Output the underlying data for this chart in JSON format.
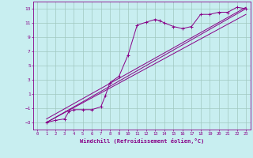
{
  "xlabel": "Windchill (Refroidissement éolien,°C)",
  "ylabel": "",
  "bg_color": "#c8eef0",
  "grid_color": "#a0c8c0",
  "line_color": "#880088",
  "xlim": [
    -0.5,
    23.5
  ],
  "ylim": [
    -4,
    14
  ],
  "xticks": [
    0,
    1,
    2,
    3,
    4,
    5,
    6,
    7,
    8,
    9,
    10,
    11,
    12,
    13,
    14,
    15,
    16,
    17,
    18,
    19,
    20,
    21,
    22,
    23
  ],
  "yticks": [
    -3,
    -1,
    1,
    3,
    5,
    7,
    9,
    11,
    13
  ],
  "data_x": [
    1,
    2,
    3,
    3.5,
    4,
    5,
    6,
    7,
    7.5,
    8,
    9,
    10,
    11,
    12,
    13,
    13.5,
    14,
    15,
    16,
    17,
    18,
    19,
    20,
    21,
    22,
    23
  ],
  "data_y": [
    -3.0,
    -2.7,
    -2.5,
    -1.4,
    -1.2,
    -1.2,
    -1.2,
    -0.8,
    0.8,
    2.6,
    3.5,
    6.5,
    10.7,
    11.1,
    11.5,
    11.3,
    11.0,
    10.5,
    10.2,
    10.5,
    12.2,
    12.2,
    12.5,
    12.5,
    13.2,
    13.0
  ],
  "line1_x": [
    1,
    23
  ],
  "line1_y": [
    -3.0,
    13.0
  ],
  "line2_x": [
    1,
    23
  ],
  "line2_y": [
    -3.0,
    12.2
  ],
  "line3_x": [
    1,
    23
  ],
  "line3_y": [
    -2.5,
    13.2
  ]
}
